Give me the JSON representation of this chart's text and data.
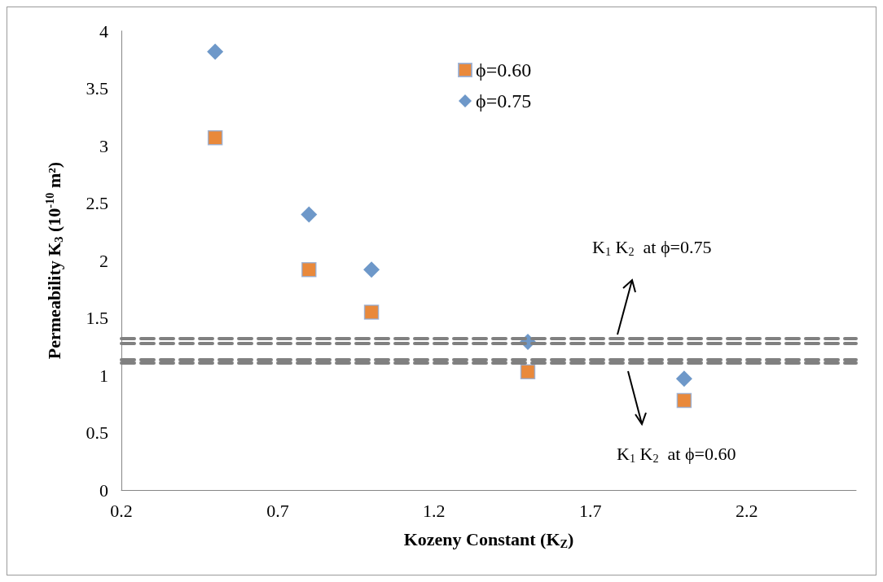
{
  "chart_data": {
    "type": "scatter",
    "xlabel": "Kozeny Constant (K$_{Z}$)",
    "ylabel": "Permeability K$_{3}$ (10$^{-10}$ m²)",
    "xlim": [
      0.2,
      2.55
    ],
    "xticks": [
      0.2,
      0.7,
      1.2,
      1.7,
      2.2
    ],
    "ylim": [
      0,
      4
    ],
    "yticks": [
      0,
      0.5,
      1,
      1.5,
      2,
      2.5,
      3,
      3.5,
      4
    ],
    "x": [
      0.5,
      0.8,
      1.0,
      1.5,
      2.0
    ],
    "series": [
      {
        "name": "ϕ=0.60",
        "color": "#e46c0a",
        "marker": "square",
        "values": [
          3.07,
          1.92,
          1.55,
          1.03,
          0.78
        ]
      },
      {
        "name": "ϕ=0.75",
        "color": "#4a7ebb",
        "marker": "diamond",
        "values": [
          3.82,
          2.4,
          1.92,
          1.29,
          0.97
        ]
      }
    ],
    "ref_lines": [
      {
        "axis": "y",
        "value": 1.32,
        "label": null,
        "color": "#808080",
        "line_style": "dashed"
      },
      {
        "axis": "y",
        "value": 1.28,
        "label": null,
        "color": "#808080",
        "line_style": "dashed"
      },
      {
        "axis": "y",
        "value": 1.14,
        "label": null,
        "color": "#808080",
        "line_style": "dashed"
      },
      {
        "axis": "y",
        "value": 1.11,
        "label": null,
        "color": "#808080",
        "line_style": "dashed"
      }
    ],
    "annotations": [
      "K$_{1}$ K$_{2}$  at ϕ=0.75",
      "K$_{1}$ K$_{2}$  at ϕ=0.60"
    ],
    "legend": "top",
    "grid": false
  }
}
